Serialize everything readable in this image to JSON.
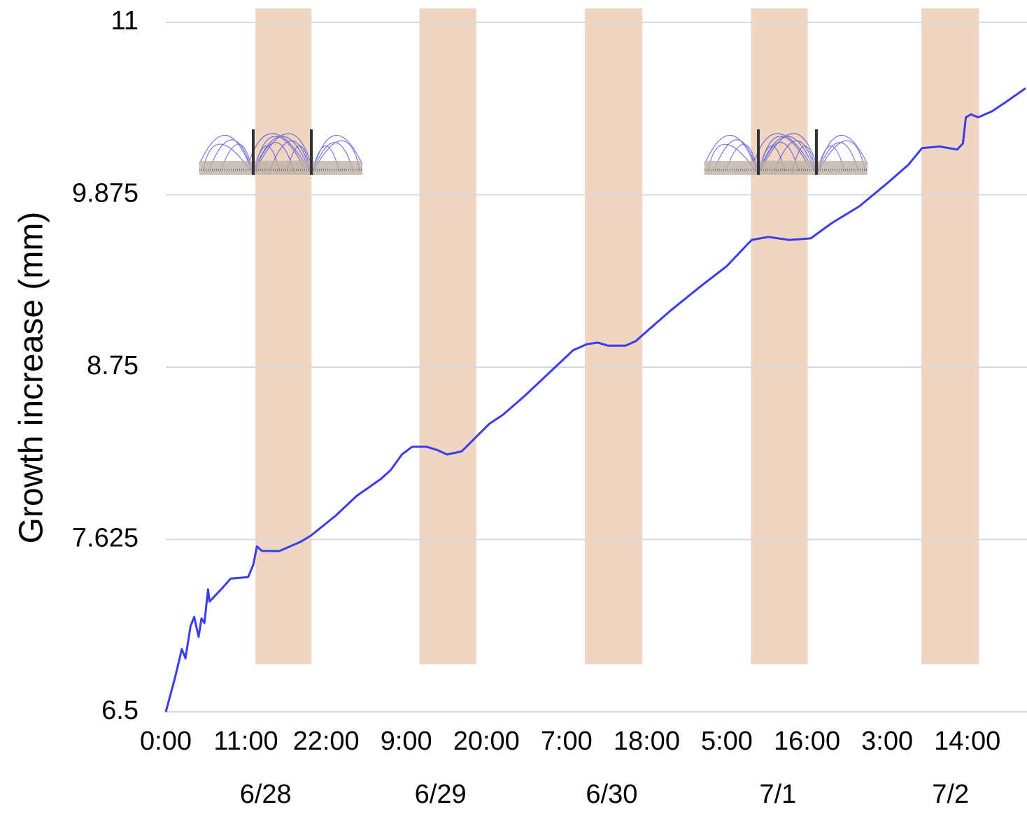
{
  "chart_data": {
    "type": "line",
    "ylabel": "Growth increase (mm)",
    "xlim": [
      0,
      118
    ],
    "ylim": [
      6.5,
      11
    ],
    "yticks": [
      6.5,
      7.625,
      8.75,
      9.875,
      11
    ],
    "xticks": [
      {
        "value": 0,
        "label": "0:00"
      },
      {
        "value": 11,
        "label": "11:00"
      },
      {
        "value": 22,
        "label": "22:00"
      },
      {
        "value": 33,
        "label": "9:00"
      },
      {
        "value": 44,
        "label": "20:00"
      },
      {
        "value": 55,
        "label": "7:00"
      },
      {
        "value": 66,
        "label": "18:00"
      },
      {
        "value": 77,
        "label": "5:00"
      },
      {
        "value": 88,
        "label": "16:00"
      },
      {
        "value": 99,
        "label": "3:00"
      },
      {
        "value": 110,
        "label": "14:00"
      }
    ],
    "date_labels": [
      {
        "value": 13.7,
        "label": "6/28"
      },
      {
        "value": 37.7,
        "label": "6/29"
      },
      {
        "value": 61.2,
        "label": "6/30"
      },
      {
        "value": 84,
        "label": "7/1"
      },
      {
        "value": 107.7,
        "label": "7/2"
      }
    ],
    "bands": [
      [
        12.3,
        20
      ],
      [
        34.8,
        42.6
      ],
      [
        57.5,
        65.4
      ],
      [
        80.3,
        88.1
      ],
      [
        103.7,
        111.6
      ]
    ],
    "band_color": "#efd5c2",
    "grid": true,
    "x": [
      0,
      1.25,
      2.2,
      2.7,
      3.4,
      3.9,
      4.5,
      4.9,
      5.3,
      5.8,
      6.0,
      7.8,
      8.9,
      11.3,
      12.0,
      12.5,
      13.2,
      15.6,
      18.5,
      19.9,
      23.3,
      26.2,
      29.5,
      30.9,
      32.4,
      33.8,
      35.8,
      37.2,
      38.6,
      40.6,
      42.5,
      44.4,
      46.3,
      49.2,
      53.0,
      55.9,
      57.8,
      59.3,
      60.7,
      63.1,
      64.5,
      66.4,
      69.3,
      73.2,
      77.0,
      80.4,
      82.7,
      85.6,
      88.5,
      91.4,
      95.2,
      99.0,
      101.9,
      103.8,
      106.2,
      108.6,
      109.4,
      109.8,
      110.5,
      111.5,
      113.4,
      115.3,
      118.0
    ],
    "series": [
      {
        "color": "#3b3bf0",
        "values": [
          6.5,
          6.72,
          6.91,
          6.85,
          7.06,
          7.12,
          6.99,
          7.11,
          7.08,
          7.3,
          7.22,
          7.31,
          7.37,
          7.38,
          7.46,
          7.58,
          7.55,
          7.55,
          7.61,
          7.65,
          7.78,
          7.91,
          8.02,
          8.08,
          8.18,
          8.23,
          8.23,
          8.21,
          8.18,
          8.2,
          8.29,
          8.38,
          8.44,
          8.56,
          8.73,
          8.86,
          8.9,
          8.91,
          8.89,
          8.89,
          8.92,
          9.0,
          9.12,
          9.27,
          9.41,
          9.58,
          9.6,
          9.58,
          9.59,
          9.69,
          9.8,
          9.95,
          10.07,
          10.18,
          10.19,
          10.17,
          10.21,
          10.38,
          10.4,
          10.38,
          10.42,
          10.48,
          10.57
        ]
      }
    ]
  }
}
